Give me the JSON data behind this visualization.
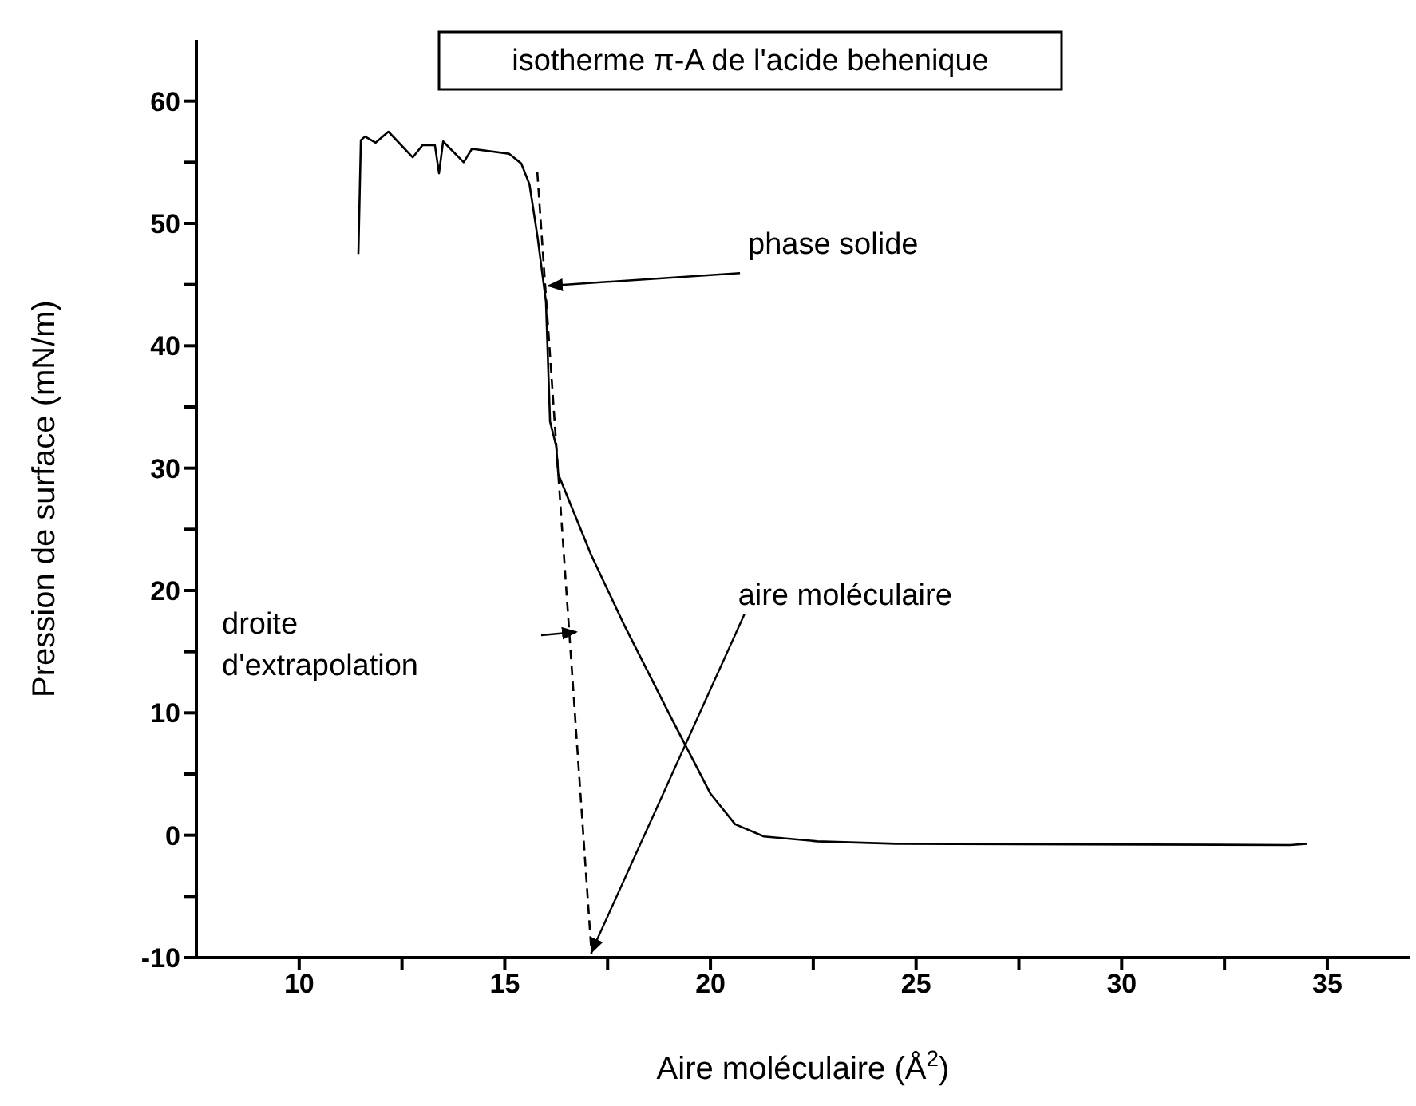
{
  "chart_data": {
    "type": "line",
    "title": "isotherme π-A de l'acide behenique",
    "xlabel": "Aire moléculaire (Å$^{2}$)",
    "ylabel": "Pression de surface (mN/m)",
    "xlim": [
      7.5,
      37
    ],
    "xticks": [
      10,
      {
        "value": 12.5,
        "label": null
      },
      15,
      {
        "value": 17.5,
        "label": null
      },
      20,
      {
        "value": 22.5,
        "label": null
      },
      25,
      {
        "value": 27.5,
        "label": null
      },
      30,
      {
        "value": 32.5,
        "label": null
      },
      35
    ],
    "ylim": [
      -10,
      65
    ],
    "yticks": [
      -10,
      {
        "value": -5,
        "label": null
      },
      0,
      {
        "value": 5,
        "label": null
      },
      10,
      {
        "value": 15,
        "label": null
      },
      20,
      {
        "value": 25,
        "label": null
      },
      30,
      {
        "value": 35,
        "label": null
      },
      40,
      {
        "value": 45,
        "label": null
      },
      50,
      {
        "value": 55,
        "label": null
      },
      60
    ],
    "marker": "none",
    "series": [
      {
        "color": "#000000",
        "line_style": "solid",
        "x": [
          11.44,
          11.5,
          11.6,
          11.86,
          12.17,
          12.76,
          13.0,
          13.3,
          13.4,
          13.5,
          14.0,
          14.2,
          15.1,
          15.4,
          15.6,
          15.8,
          16.0,
          16.1,
          16.25,
          16.3,
          17.1,
          17.9,
          18.97,
          20.0,
          20.6,
          21.3,
          22.6,
          24.5,
          34.1,
          34.5
        ],
        "values": [
          47.5,
          56.8,
          57.1,
          56.6,
          57.5,
          55.4,
          56.4,
          56.4,
          54.1,
          56.7,
          55.0,
          56.1,
          55.7,
          54.9,
          53.2,
          48.8,
          43.6,
          33.8,
          31.8,
          29.5,
          22.9,
          17.2,
          10.1,
          3.4,
          0.9,
          -0.1,
          -0.5,
          -0.7,
          -0.8,
          -0.7
        ]
      },
      {
        "color": "#000000",
        "line_style": "dashed",
        "x": [
          15.79,
          17.11
        ],
        "values": [
          54.2,
          -9.7
        ]
      }
    ],
    "annotations": [
      {
        "text": "phase solide",
        "x": 16.06,
        "y": 44.9
      },
      "droite\nd'extrapolation",
      {
        "text": "aire moléculaire",
        "x": 17.1,
        "y": -9.6
      }
    ]
  }
}
